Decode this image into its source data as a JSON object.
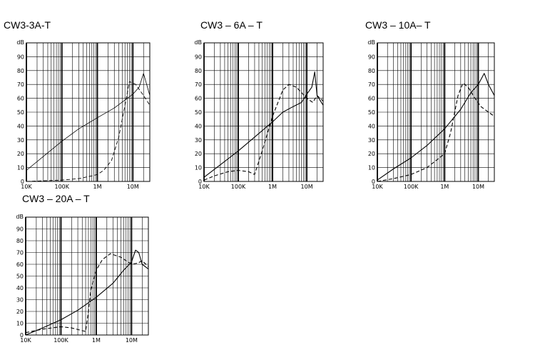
{
  "chart_data": [
    {
      "type": "line",
      "title": "CW3-3A-T",
      "ylabel": "dB",
      "ylim": [
        0,
        100
      ],
      "xlim": [
        10000,
        30000000
      ],
      "xscale": "log",
      "grid": true,
      "y_ticks": [
        "0",
        "10",
        "20",
        "30",
        "40",
        "50",
        "60",
        "70",
        "80",
        "90"
      ],
      "x_ticks": [
        {
          "v": 10000,
          "label": "10K"
        },
        {
          "v": 100000,
          "label": "100K"
        },
        {
          "v": 1000000,
          "label": "1M"
        },
        {
          "v": 10000000,
          "label": "10M"
        }
      ],
      "series": [
        {
          "style": "solid",
          "width": 0.8,
          "x": [
            10000,
            30000,
            100000,
            300000,
            1000000,
            3000000,
            10000000,
            15000000,
            20000000,
            30000000
          ],
          "y": [
            8,
            18,
            29,
            38,
            46,
            53,
            63,
            68,
            78,
            62
          ]
        },
        {
          "style": "dashed",
          "width": 0.9,
          "x": [
            10000,
            100000,
            300000,
            700000,
            1000000,
            1500000,
            2500000,
            4000000,
            6000000,
            8000000,
            12000000,
            20000000,
            30000000
          ],
          "y": [
            0,
            1,
            2,
            4,
            5,
            8,
            15,
            32,
            55,
            72,
            70,
            62,
            55
          ]
        }
      ]
    },
    {
      "type": "line",
      "title": "CW3 – 6A – T",
      "ylabel": "dB",
      "ylim": [
        0,
        100
      ],
      "xlim": [
        10000,
        30000000
      ],
      "xscale": "log",
      "grid": true,
      "y_ticks": [
        "0",
        "10",
        "20",
        "30",
        "40",
        "50",
        "60",
        "70",
        "80",
        "90"
      ],
      "x_ticks": [
        {
          "v": 10000,
          "label": "10K"
        },
        {
          "v": 100000,
          "label": "100K"
        },
        {
          "v": 1000000,
          "label": "1M"
        },
        {
          "v": 10000000,
          "label": "10M"
        }
      ],
      "series": [
        {
          "style": "solid",
          "width": 1.1,
          "x": [
            10000,
            30000,
            100000,
            300000,
            1000000,
            2000000,
            4000000,
            7000000,
            10000000,
            14000000,
            17000000,
            20000000,
            30000000
          ],
          "y": [
            3,
            12,
            22,
            32,
            43,
            50,
            54,
            57,
            63,
            68,
            79,
            62,
            55
          ]
        },
        {
          "style": "dashed",
          "width": 1.1,
          "x": [
            10000,
            20000,
            50000,
            100000,
            200000,
            300000,
            500000,
            1000000,
            2000000,
            3000000,
            5000000,
            10000000,
            15000000,
            20000000,
            30000000
          ],
          "y": [
            1,
            4,
            7,
            8,
            7,
            5,
            22,
            47,
            66,
            70,
            68,
            60,
            57,
            62,
            58
          ]
        }
      ]
    },
    {
      "type": "line",
      "title": "CW3 – 10A– T",
      "ylabel": "dB",
      "ylim": [
        0,
        100
      ],
      "xlim": [
        10000,
        30000000
      ],
      "xscale": "log",
      "grid": true,
      "y_ticks": [
        "0",
        "10",
        "20",
        "30",
        "40",
        "50",
        "60",
        "70",
        "80",
        "90"
      ],
      "x_ticks": [
        {
          "v": 10000,
          "label": "10K"
        },
        {
          "v": 100000,
          "label": "100K"
        },
        {
          "v": 1000000,
          "label": "1M"
        },
        {
          "v": 10000000,
          "label": "10M"
        }
      ],
      "series": [
        {
          "style": "solid",
          "width": 1.1,
          "x": [
            10000,
            30000,
            100000,
            300000,
            1000000,
            3000000,
            6000000,
            10000000,
            15000000,
            20000000,
            30000000
          ],
          "y": [
            1,
            9,
            17,
            26,
            38,
            52,
            64,
            70,
            78,
            70,
            62
          ]
        },
        {
          "style": "dashed",
          "width": 1.1,
          "x": [
            10000,
            30000,
            100000,
            300000,
            1000000,
            1500000,
            2500000,
            3500000,
            5000000,
            8000000,
            12000000,
            20000000,
            30000000
          ],
          "y": [
            0,
            2,
            5,
            10,
            20,
            35,
            62,
            71,
            68,
            60,
            54,
            50,
            47
          ]
        }
      ]
    },
    {
      "type": "line",
      "title": "CW3 – 20A – T",
      "ylabel": "dB",
      "ylim": [
        0,
        100
      ],
      "xlim": [
        10000,
        30000000
      ],
      "xscale": "log",
      "grid": true,
      "y_ticks": [
        "0",
        "10",
        "20",
        "30",
        "40",
        "50",
        "60",
        "70",
        "80",
        "90"
      ],
      "x_ticks": [
        {
          "v": 10000,
          "label": "10K"
        },
        {
          "v": 100000,
          "label": "100K"
        },
        {
          "v": 1000000,
          "label": "1M"
        },
        {
          "v": 10000000,
          "label": "10M"
        }
      ],
      "series": [
        {
          "style": "solid",
          "width": 1.1,
          "x": [
            10000,
            30000,
            100000,
            300000,
            1000000,
            3000000,
            6000000,
            10000000,
            13000000,
            16000000,
            20000000,
            30000000
          ],
          "y": [
            0,
            6,
            13,
            21,
            32,
            44,
            55,
            62,
            72,
            70,
            60,
            56
          ]
        },
        {
          "style": "dashed",
          "width": 1.1,
          "x": [
            10000,
            30000,
            100000,
            200000,
            500000,
            600000,
            700000,
            1000000,
            1500000,
            2500000,
            5000000,
            10000000,
            15000000,
            20000000,
            30000000
          ],
          "y": [
            2,
            5,
            7,
            6,
            3,
            20,
            38,
            55,
            64,
            69,
            66,
            60,
            61,
            63,
            58
          ]
        }
      ]
    }
  ]
}
